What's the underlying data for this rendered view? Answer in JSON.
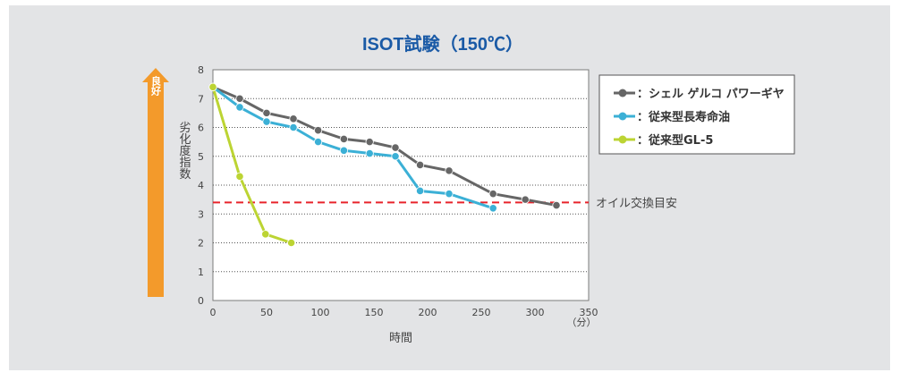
{
  "chart_data": {
    "type": "line",
    "title": "ISOT試験（150℃）",
    "xlabel": "時間",
    "x_unit": "（分）",
    "ylabel": "劣化度指数",
    "direction_label": "良好",
    "xlim": [
      0,
      350
    ],
    "ylim": [
      0,
      8
    ],
    "x_ticks": [
      0,
      50,
      100,
      150,
      200,
      250,
      300,
      350
    ],
    "y_ticks": [
      0,
      1,
      2,
      3,
      4,
      5,
      6,
      7,
      8
    ],
    "grid": "horizontal-dotted",
    "legend_position": "top-right",
    "reference_line": {
      "value": 3.4,
      "label": "オイル交換目安",
      "color": "#e8232b"
    },
    "series": [
      {
        "name": "：シェル ゲルコ パワーギヤ",
        "color": "#666666",
        "x": [
          0,
          25,
          50,
          75,
          98,
          122,
          146,
          170,
          193,
          220,
          261,
          291,
          320
        ],
        "y": [
          7.4,
          7.0,
          6.5,
          6.3,
          5.9,
          5.6,
          5.5,
          5.3,
          4.7,
          4.5,
          3.7,
          3.5,
          3.3
        ]
      },
      {
        "name": "：従来型長寿命油",
        "color": "#3bb0d6",
        "x": [
          0,
          25,
          50,
          75,
          98,
          122,
          146,
          170,
          193,
          220,
          261
        ],
        "y": [
          7.4,
          6.7,
          6.2,
          6.0,
          5.5,
          5.2,
          5.1,
          5.0,
          3.8,
          3.7,
          3.2
        ]
      },
      {
        "name": "：従来型GL-5",
        "color": "#bcd433",
        "x": [
          0,
          25,
          49,
          73
        ],
        "y": [
          7.4,
          4.3,
          2.3,
          2.0
        ]
      }
    ]
  }
}
